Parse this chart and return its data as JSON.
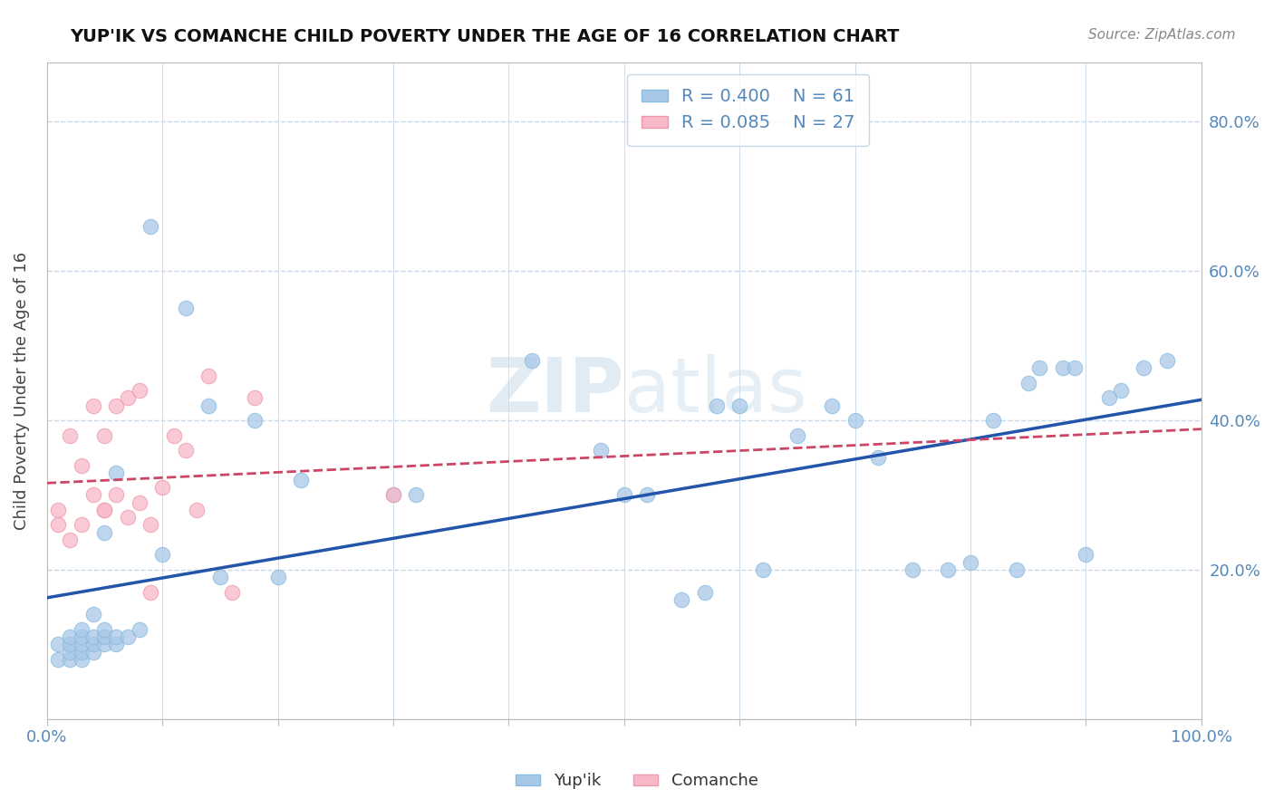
{
  "title": "YUP'IK VS COMANCHE CHILD POVERTY UNDER THE AGE OF 16 CORRELATION CHART",
  "source": "Source: ZipAtlas.com",
  "ylabel": "Child Poverty Under the Age of 16",
  "xlim": [
    0,
    1.0
  ],
  "ylim": [
    0,
    0.88
  ],
  "xtick_positions": [
    0.0,
    0.1,
    0.2,
    0.3,
    0.4,
    0.5,
    0.6,
    0.7,
    0.8,
    0.9,
    1.0
  ],
  "ytick_positions": [
    0.0,
    0.2,
    0.4,
    0.6,
    0.8
  ],
  "yuplik_color": "#a8c8e8",
  "comanche_color": "#f8b8c8",
  "yuplik_line_color": "#2255aa",
  "comanche_line_color": "#cc4466",
  "yuplik_R": 0.4,
  "yuplik_N": 61,
  "comanche_R": 0.085,
  "comanche_N": 27,
  "background_color": "#ffffff",
  "watermark": "ZIPAtlas",
  "tick_color": "#5588bb",
  "grid_color": "#c8d8e8",
  "yuplik_x": [
    0.01,
    0.01,
    0.02,
    0.02,
    0.02,
    0.02,
    0.03,
    0.03,
    0.03,
    0.03,
    0.03,
    0.04,
    0.04,
    0.04,
    0.04,
    0.05,
    0.05,
    0.05,
    0.05,
    0.06,
    0.06,
    0.06,
    0.07,
    0.08,
    0.09,
    0.1,
    0.12,
    0.14,
    0.15,
    0.18,
    0.2,
    0.22,
    0.3,
    0.32,
    0.42,
    0.48,
    0.5,
    0.52,
    0.55,
    0.57,
    0.58,
    0.6,
    0.62,
    0.65,
    0.68,
    0.7,
    0.72,
    0.75,
    0.78,
    0.8,
    0.82,
    0.84,
    0.85,
    0.86,
    0.88,
    0.89,
    0.9,
    0.92,
    0.93,
    0.95,
    0.97
  ],
  "yuplik_y": [
    0.08,
    0.1,
    0.08,
    0.09,
    0.1,
    0.11,
    0.08,
    0.09,
    0.1,
    0.11,
    0.12,
    0.09,
    0.1,
    0.11,
    0.14,
    0.1,
    0.11,
    0.12,
    0.25,
    0.1,
    0.11,
    0.33,
    0.11,
    0.12,
    0.66,
    0.22,
    0.55,
    0.42,
    0.19,
    0.4,
    0.19,
    0.32,
    0.3,
    0.3,
    0.48,
    0.36,
    0.3,
    0.3,
    0.16,
    0.17,
    0.42,
    0.42,
    0.2,
    0.38,
    0.42,
    0.4,
    0.35,
    0.2,
    0.2,
    0.21,
    0.4,
    0.2,
    0.45,
    0.47,
    0.47,
    0.47,
    0.22,
    0.43,
    0.44,
    0.47,
    0.48
  ],
  "comanche_x": [
    0.01,
    0.01,
    0.02,
    0.02,
    0.03,
    0.03,
    0.04,
    0.04,
    0.05,
    0.05,
    0.05,
    0.06,
    0.06,
    0.07,
    0.07,
    0.08,
    0.08,
    0.09,
    0.09,
    0.1,
    0.11,
    0.12,
    0.13,
    0.14,
    0.16,
    0.18,
    0.3
  ],
  "comanche_y": [
    0.26,
    0.28,
    0.24,
    0.38,
    0.26,
    0.34,
    0.3,
    0.42,
    0.28,
    0.38,
    0.28,
    0.3,
    0.42,
    0.27,
    0.43,
    0.44,
    0.29,
    0.26,
    0.17,
    0.31,
    0.38,
    0.36,
    0.28,
    0.46,
    0.17,
    0.43,
    0.3
  ]
}
